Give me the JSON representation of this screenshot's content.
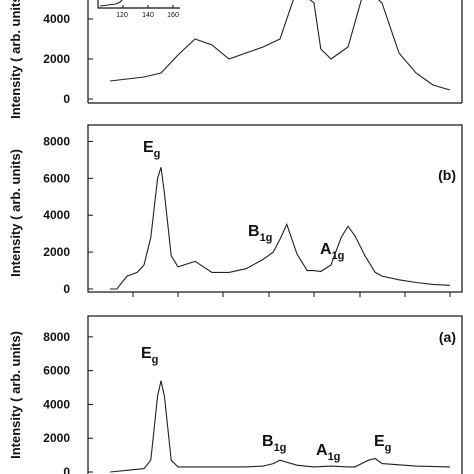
{
  "chart_data": [
    {
      "type": "line",
      "panel_label": "",
      "ylabel": "Intensity ( arb. units)",
      "ylim": [
        0,
        6000
      ],
      "y_ticks": [
        0,
        2000,
        4000
      ],
      "inset_ticks": [
        "120",
        "140",
        "160"
      ],
      "x": [
        0,
        5,
        10,
        15,
        20,
        25,
        30,
        35,
        40,
        45,
        50,
        55,
        60,
        62,
        65,
        70,
        75,
        80,
        85,
        90,
        95,
        100
      ],
      "series": [
        {
          "values": [
            900,
            1000,
            1100,
            1300,
            2200,
            3000,
            2700,
            2000,
            2300,
            2600,
            3000,
            5500,
            4800,
            2500,
            2000,
            2600,
            5600,
            4800,
            2300,
            1300,
            700,
            450
          ]
        }
      ],
      "annotations": []
    },
    {
      "type": "line",
      "panel_label": "(b)",
      "ylabel": "Intensity ( arb. units)",
      "ylim": [
        0,
        9000
      ],
      "y_ticks": [
        0,
        2000,
        4000,
        6000,
        8000
      ],
      "x": [
        0,
        2,
        5,
        8,
        10,
        12,
        14,
        15,
        16,
        18,
        20,
        25,
        30,
        35,
        40,
        45,
        48,
        50,
        52,
        55,
        58,
        60,
        62,
        65,
        68,
        70,
        72,
        75,
        78,
        80,
        85,
        90,
        95,
        100
      ],
      "series": [
        {
          "values": [
            0,
            0,
            700,
            900,
            1300,
            2800,
            6000,
            6600,
            5200,
            1800,
            1200,
            1500,
            900,
            900,
            1100,
            1600,
            2000,
            2700,
            3500,
            1900,
            1000,
            1000,
            950,
            1300,
            2800,
            3400,
            2900,
            1800,
            900,
            700,
            500,
            350,
            250,
            200
          ]
        }
      ],
      "annotations": [
        {
          "base": "E",
          "sub": "g"
        },
        {
          "base": "B",
          "sub": "1g"
        },
        {
          "base": "A",
          "sub": "1g"
        }
      ]
    },
    {
      "type": "line",
      "panel_label": "(a)",
      "ylabel": "Intensity ( arb. units)",
      "ylim": [
        0,
        9000
      ],
      "y_ticks": [
        0,
        2000,
        4000,
        6000,
        8000
      ],
      "x": [
        0,
        5,
        10,
        12,
        14,
        15,
        16,
        18,
        20,
        30,
        40,
        45,
        48,
        50,
        55,
        60,
        65,
        70,
        72,
        74,
        76,
        78,
        80,
        90,
        100
      ],
      "series": [
        {
          "values": [
            0,
            100,
            200,
            700,
            4500,
            5400,
            4500,
            700,
            300,
            300,
            300,
            350,
            500,
            700,
            400,
            300,
            350,
            300,
            300,
            500,
            700,
            800,
            500,
            350,
            300
          ]
        }
      ],
      "annotations": [
        {
          "base": "E",
          "sub": "g"
        },
        {
          "base": "B",
          "sub": "1g"
        },
        {
          "base": "A",
          "sub": "1g"
        },
        {
          "base": "E",
          "sub": "g"
        }
      ]
    }
  ]
}
